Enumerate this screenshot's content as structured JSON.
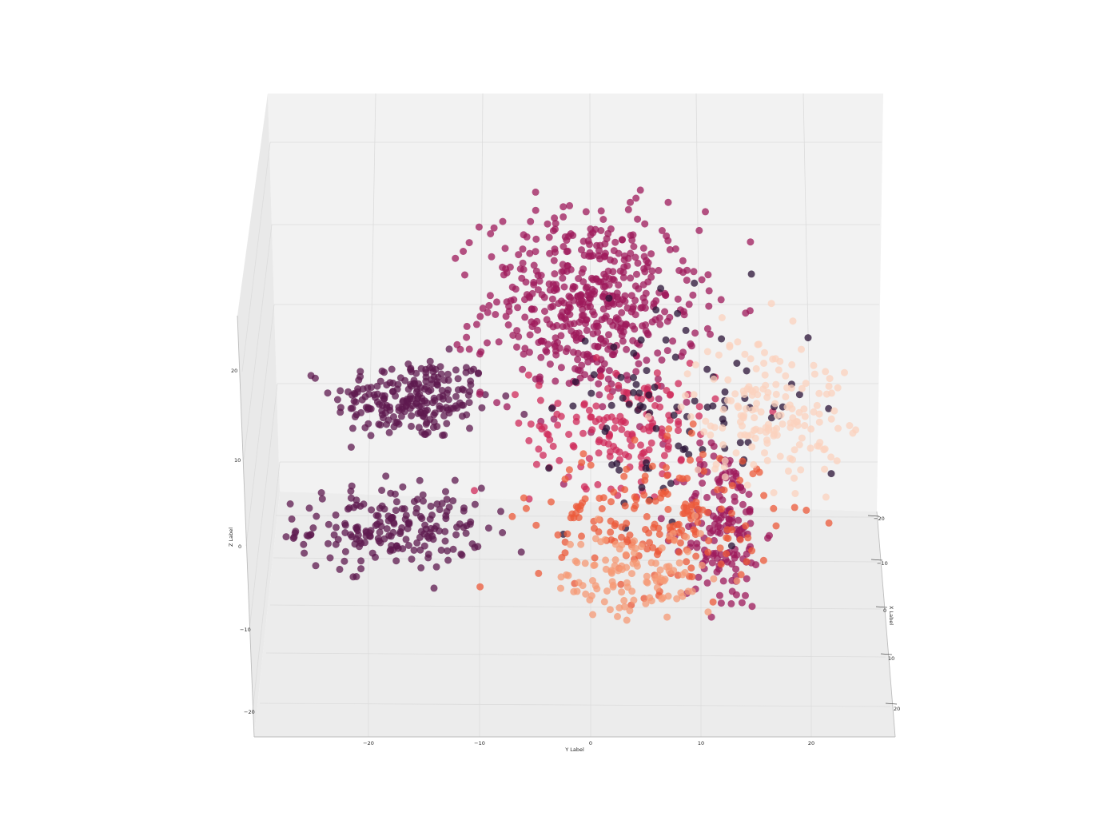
{
  "chart_data": {
    "type": "scatter3d",
    "title": "",
    "xlabel": "X Label",
    "ylabel": "Y Label",
    "zlabel": "Z Label",
    "xticks": [
      "−20",
      "−10",
      "0",
      "10",
      "20"
    ],
    "yticks": [
      "−20",
      "−10",
      "0",
      "10",
      "20"
    ],
    "zticks": [
      "−20",
      "−10",
      "0",
      "10",
      "20"
    ],
    "xlim": [
      -25,
      25
    ],
    "ylim": [
      -30,
      28
    ],
    "zlim": [
      -20,
      30
    ],
    "grid": true,
    "marker_size_px": 9,
    "marker_alpha": 0.75,
    "colormap": "rocket",
    "colors": [
      "#2a1136",
      "#5d1a4f",
      "#9e1a5b",
      "#cf2a5a",
      "#ec5a3a",
      "#f59a76",
      "#fbd2bd"
    ],
    "clusters": [
      {
        "name": "",
        "color_index": 1,
        "points": 230,
        "y_center": -16,
        "z_center": 17,
        "spread_y": 6,
        "spread_z": 4
      },
      {
        "name": "",
        "color_index": 1,
        "points": 200,
        "y_center": -18,
        "z_center": 2,
        "spread_y": 7,
        "spread_z": 4
      },
      {
        "name": "",
        "color_index": 2,
        "points": 520,
        "y_center": 0,
        "z_center": 28,
        "spread_y": 8,
        "spread_z": 9
      },
      {
        "name": "",
        "color_index": 2,
        "points": 160,
        "y_center": 12,
        "z_center": 2,
        "spread_y": 3,
        "spread_z": 8
      },
      {
        "name": "",
        "color_index": 3,
        "points": 160,
        "y_center": 3,
        "z_center": 14,
        "spread_y": 7,
        "spread_z": 6
      },
      {
        "name": "",
        "color_index": 0,
        "points": 90,
        "y_center": 8,
        "z_center": 16,
        "spread_y": 10,
        "spread_z": 10
      },
      {
        "name": "",
        "color_index": 4,
        "points": 190,
        "y_center": 6,
        "z_center": 3,
        "spread_y": 9,
        "spread_z": 7
      },
      {
        "name": "",
        "color_index": 5,
        "points": 120,
        "y_center": 4,
        "z_center": -4,
        "spread_y": 6,
        "spread_z": 5
      },
      {
        "name": "",
        "color_index": 6,
        "points": 170,
        "y_center": 16,
        "z_center": 16,
        "spread_y": 6,
        "spread_z": 7
      }
    ]
  }
}
